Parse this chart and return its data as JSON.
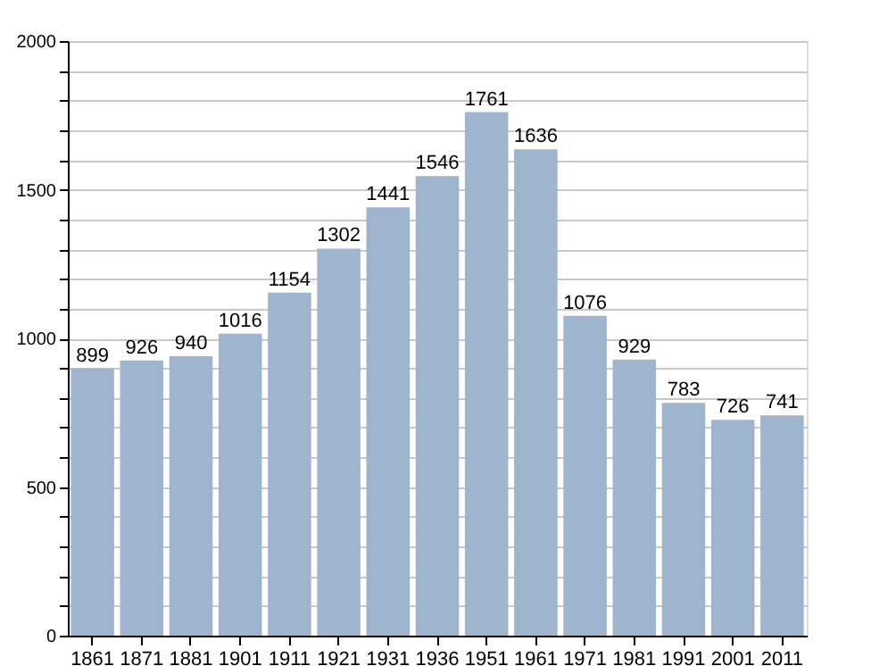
{
  "chart_data": {
    "type": "bar",
    "categories": [
      "1861",
      "1871",
      "1881",
      "1901",
      "1911",
      "1921",
      "1931",
      "1936",
      "1951",
      "1961",
      "1971",
      "1981",
      "1991",
      "2001",
      "2011"
    ],
    "values": [
      899,
      926,
      940,
      1016,
      1154,
      1302,
      1441,
      1546,
      1761,
      1636,
      1076,
      929,
      783,
      726,
      741
    ],
    "color": "#9fb5cd",
    "ylim": [
      0,
      2000
    ],
    "yticks": [
      0,
      {
        "value": 100,
        "label": null
      },
      {
        "value": 200,
        "label": null
      },
      {
        "value": 300,
        "label": null
      },
      {
        "value": 400,
        "label": null
      },
      500,
      {
        "value": 600,
        "label": null
      },
      {
        "value": 700,
        "label": null
      },
      {
        "value": 800,
        "label": null
      },
      {
        "value": 900,
        "label": null
      },
      1000,
      {
        "value": 1100,
        "label": null
      },
      {
        "value": 1200,
        "label": null
      },
      {
        "value": 1300,
        "label": null
      },
      {
        "value": 1400,
        "label": null
      },
      1500,
      {
        "value": 1600,
        "label": null
      },
      {
        "value": 1700,
        "label": null
      },
      {
        "value": 1800,
        "label": null
      },
      {
        "value": 1900,
        "label": null
      },
      2000
    ],
    "grid": "y",
    "data_labels": true
  }
}
